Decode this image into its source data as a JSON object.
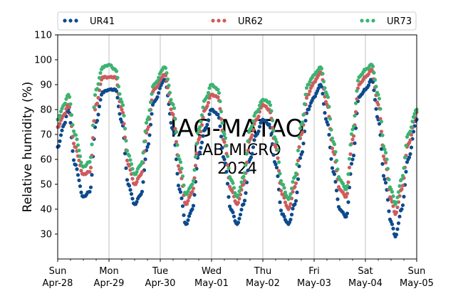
{
  "chart_data": {
    "type": "scatter",
    "ylabel": "Relative humidity (%)",
    "xlabel": "",
    "ylim": [
      20,
      110
    ],
    "yticks": [
      30,
      40,
      50,
      60,
      70,
      80,
      90,
      100,
      110
    ],
    "xlim": [
      "2024-04-28T00:00",
      "2024-05-05T00:00"
    ],
    "xticks": [
      {
        "date": "2024-04-28",
        "day": "Sun",
        "label": "Apr-28"
      },
      {
        "date": "2024-04-29",
        "day": "Mon",
        "label": "Apr-29"
      },
      {
        "date": "2024-04-30",
        "day": "Tue",
        "label": "Apr-30"
      },
      {
        "date": "2024-05-01",
        "day": "Wed",
        "label": "May-01"
      },
      {
        "date": "2024-05-02",
        "day": "Thu",
        "label": "May-02"
      },
      {
        "date": "2024-05-03",
        "day": "Fri",
        "label": "May-03"
      },
      {
        "date": "2024-05-04",
        "day": "Sat",
        "label": "May-04"
      },
      {
        "date": "2024-05-05",
        "day": "Sun",
        "label": "May-05"
      }
    ],
    "grid": "vertical",
    "legend_position": "top",
    "watermark": [
      "IAG-MATAO",
      "LAB MICRO",
      "2024"
    ],
    "series": [
      {
        "name": "UR41",
        "color": "#0d4a8c",
        "points": [
          [
            "2024-04-28T00:00",
            65
          ],
          [
            "2024-04-28T03:00",
            74
          ],
          [
            "2024-04-28T05:00",
            80
          ],
          [
            "2024-04-28T08:00",
            58
          ],
          [
            "2024-04-28T12:00",
            45
          ],
          [
            "2024-04-28T15:00",
            47
          ],
          [
            "2024-04-28T18:00",
            75
          ],
          [
            "2024-04-28T21:00",
            87
          ],
          [
            "2024-04-29T00:00",
            88
          ],
          [
            "2024-04-29T03:00",
            88
          ],
          [
            "2024-04-29T06:00",
            75
          ],
          [
            "2024-04-29T09:00",
            50
          ],
          [
            "2024-04-29T12:00",
            42
          ],
          [
            "2024-04-29T15:00",
            46
          ],
          [
            "2024-04-29T18:00",
            65
          ],
          [
            "2024-04-29T21:00",
            83
          ],
          [
            "2024-04-30T02:00",
            92
          ],
          [
            "2024-04-30T06:00",
            72
          ],
          [
            "2024-04-30T09:00",
            48
          ],
          [
            "2024-04-30T12:00",
            34
          ],
          [
            "2024-04-30T15:00",
            40
          ],
          [
            "2024-04-30T18:00",
            62
          ],
          [
            "2024-04-30T21:00",
            72
          ],
          [
            "2024-05-01T00:00",
            80
          ],
          [
            "2024-05-01T03:00",
            78
          ],
          [
            "2024-05-01T06:00",
            60
          ],
          [
            "2024-05-01T09:00",
            40
          ],
          [
            "2024-05-01T12:00",
            34
          ],
          [
            "2024-05-01T15:00",
            42
          ],
          [
            "2024-05-01T18:00",
            60
          ],
          [
            "2024-05-01T21:00",
            70
          ],
          [
            "2024-05-02T00:00",
            76
          ],
          [
            "2024-05-02T03:00",
            74
          ],
          [
            "2024-05-02T06:00",
            58
          ],
          [
            "2024-05-02T09:00",
            38
          ],
          [
            "2024-05-02T12:00",
            34
          ],
          [
            "2024-05-02T15:00",
            42
          ],
          [
            "2024-05-02T18:00",
            62
          ],
          [
            "2024-05-02T21:00",
            80
          ],
          [
            "2024-05-03T00:00",
            85
          ],
          [
            "2024-05-03T03:00",
            90
          ],
          [
            "2024-05-03T06:00",
            75
          ],
          [
            "2024-05-03T09:00",
            55
          ],
          [
            "2024-05-03T12:00",
            40
          ],
          [
            "2024-05-03T15:00",
            37
          ],
          [
            "2024-05-03T18:00",
            60
          ],
          [
            "2024-05-03T21:00",
            85
          ],
          [
            "2024-05-04T00:00",
            88
          ],
          [
            "2024-05-04T03:00",
            92
          ],
          [
            "2024-05-04T06:00",
            76
          ],
          [
            "2024-05-04T09:00",
            52
          ],
          [
            "2024-05-04T12:00",
            35
          ],
          [
            "2024-05-04T14:00",
            29
          ],
          [
            "2024-05-04T17:00",
            40
          ],
          [
            "2024-05-04T20:00",
            60
          ],
          [
            "2024-05-05T00:00",
            76
          ]
        ]
      },
      {
        "name": "UR62",
        "color": "#cd5c5c",
        "points": [
          [
            "2024-04-28T00:00",
            73
          ],
          [
            "2024-04-28T03:00",
            78
          ],
          [
            "2024-04-28T05:00",
            82
          ],
          [
            "2024-04-28T08:00",
            65
          ],
          [
            "2024-04-28T12:00",
            54
          ],
          [
            "2024-04-28T15:00",
            55
          ],
          [
            "2024-04-28T18:00",
            82
          ],
          [
            "2024-04-28T21:00",
            93
          ],
          [
            "2024-04-29T00:00",
            93
          ],
          [
            "2024-04-29T03:00",
            93
          ],
          [
            "2024-04-29T06:00",
            80
          ],
          [
            "2024-04-29T09:00",
            58
          ],
          [
            "2024-04-29T12:00",
            50
          ],
          [
            "2024-04-29T15:00",
            54
          ],
          [
            "2024-04-29T18:00",
            72
          ],
          [
            "2024-04-29T21:00",
            88
          ],
          [
            "2024-04-30T02:00",
            94
          ],
          [
            "2024-04-30T06:00",
            78
          ],
          [
            "2024-04-30T09:00",
            56
          ],
          [
            "2024-04-30T12:00",
            42
          ],
          [
            "2024-04-30T15:00",
            47
          ],
          [
            "2024-04-30T18:00",
            68
          ],
          [
            "2024-04-30T21:00",
            80
          ],
          [
            "2024-05-01T00:00",
            86
          ],
          [
            "2024-05-01T03:00",
            85
          ],
          [
            "2024-05-01T06:00",
            67
          ],
          [
            "2024-05-01T09:00",
            48
          ],
          [
            "2024-05-01T12:00",
            42
          ],
          [
            "2024-05-01T15:00",
            50
          ],
          [
            "2024-05-01T18:00",
            68
          ],
          [
            "2024-05-01T21:00",
            76
          ],
          [
            "2024-05-02T00:00",
            82
          ],
          [
            "2024-05-02T03:00",
            80
          ],
          [
            "2024-05-02T06:00",
            65
          ],
          [
            "2024-05-02T09:00",
            46
          ],
          [
            "2024-05-02T12:00",
            40
          ],
          [
            "2024-05-02T15:00",
            49
          ],
          [
            "2024-05-02T18:00",
            70
          ],
          [
            "2024-05-02T21:00",
            86
          ],
          [
            "2024-05-03T00:00",
            91
          ],
          [
            "2024-05-03T03:00",
            95
          ],
          [
            "2024-05-03T06:00",
            82
          ],
          [
            "2024-05-03T09:00",
            63
          ],
          [
            "2024-05-03T12:00",
            48
          ],
          [
            "2024-05-03T15:00",
            45
          ],
          [
            "2024-05-03T18:00",
            68
          ],
          [
            "2024-05-03T21:00",
            90
          ],
          [
            "2024-05-04T00:00",
            93
          ],
          [
            "2024-05-04T03:00",
            96
          ],
          [
            "2024-05-04T06:00",
            82
          ],
          [
            "2024-05-04T09:00",
            60
          ],
          [
            "2024-05-04T12:00",
            44
          ],
          [
            "2024-05-04T14:00",
            38
          ],
          [
            "2024-05-04T17:00",
            48
          ],
          [
            "2024-05-04T20:00",
            66
          ],
          [
            "2024-05-05T00:00",
            79
          ]
        ]
      },
      {
        "name": "UR73",
        "color": "#3cb371",
        "points": [
          [
            "2024-04-28T00:00",
            76
          ],
          [
            "2024-04-28T03:00",
            82
          ],
          [
            "2024-04-28T05:00",
            86
          ],
          [
            "2024-04-28T08:00",
            70
          ],
          [
            "2024-04-28T12:00",
            57
          ],
          [
            "2024-04-28T15:00",
            59
          ],
          [
            "2024-04-28T18:00",
            88
          ],
          [
            "2024-04-28T21:00",
            97
          ],
          [
            "2024-04-29T00:00",
            98
          ],
          [
            "2024-04-29T03:00",
            96
          ],
          [
            "2024-04-29T06:00",
            83
          ],
          [
            "2024-04-29T09:00",
            62
          ],
          [
            "2024-04-29T12:00",
            54
          ],
          [
            "2024-04-29T15:00",
            58
          ],
          [
            "2024-04-29T18:00",
            76
          ],
          [
            "2024-04-29T21:00",
            90
          ],
          [
            "2024-04-30T02:00",
            97
          ],
          [
            "2024-04-30T06:00",
            82
          ],
          [
            "2024-04-30T09:00",
            60
          ],
          [
            "2024-04-30T12:00",
            46
          ],
          [
            "2024-04-30T15:00",
            50
          ],
          [
            "2024-04-30T18:00",
            72
          ],
          [
            "2024-04-30T21:00",
            84
          ],
          [
            "2024-05-01T00:00",
            90
          ],
          [
            "2024-05-01T03:00",
            88
          ],
          [
            "2024-05-01T06:00",
            70
          ],
          [
            "2024-05-01T09:00",
            52
          ],
          [
            "2024-05-01T12:00",
            45
          ],
          [
            "2024-05-01T15:00",
            53
          ],
          [
            "2024-05-01T18:00",
            72
          ],
          [
            "2024-05-01T21:00",
            79
          ],
          [
            "2024-05-02T00:00",
            84
          ],
          [
            "2024-05-02T03:00",
            83
          ],
          [
            "2024-05-02T06:00",
            68
          ],
          [
            "2024-05-02T09:00",
            50
          ],
          [
            "2024-05-02T12:00",
            44
          ],
          [
            "2024-05-02T15:00",
            53
          ],
          [
            "2024-05-02T18:00",
            74
          ],
          [
            "2024-05-02T21:00",
            90
          ],
          [
            "2024-05-03T00:00",
            94
          ],
          [
            "2024-05-03T03:00",
            97
          ],
          [
            "2024-05-03T06:00",
            86
          ],
          [
            "2024-05-03T09:00",
            67
          ],
          [
            "2024-05-03T12:00",
            52
          ],
          [
            "2024-05-03T15:00",
            48
          ],
          [
            "2024-05-03T18:00",
            72
          ],
          [
            "2024-05-03T21:00",
            93
          ],
          [
            "2024-05-04T00:00",
            96
          ],
          [
            "2024-05-04T03:00",
            98
          ],
          [
            "2024-05-04T06:00",
            86
          ],
          [
            "2024-05-04T09:00",
            64
          ],
          [
            "2024-05-04T12:00",
            48
          ],
          [
            "2024-05-04T14:00",
            42
          ],
          [
            "2024-05-04T17:00",
            52
          ],
          [
            "2024-05-04T20:00",
            70
          ],
          [
            "2024-05-05T00:00",
            80
          ]
        ]
      }
    ]
  }
}
